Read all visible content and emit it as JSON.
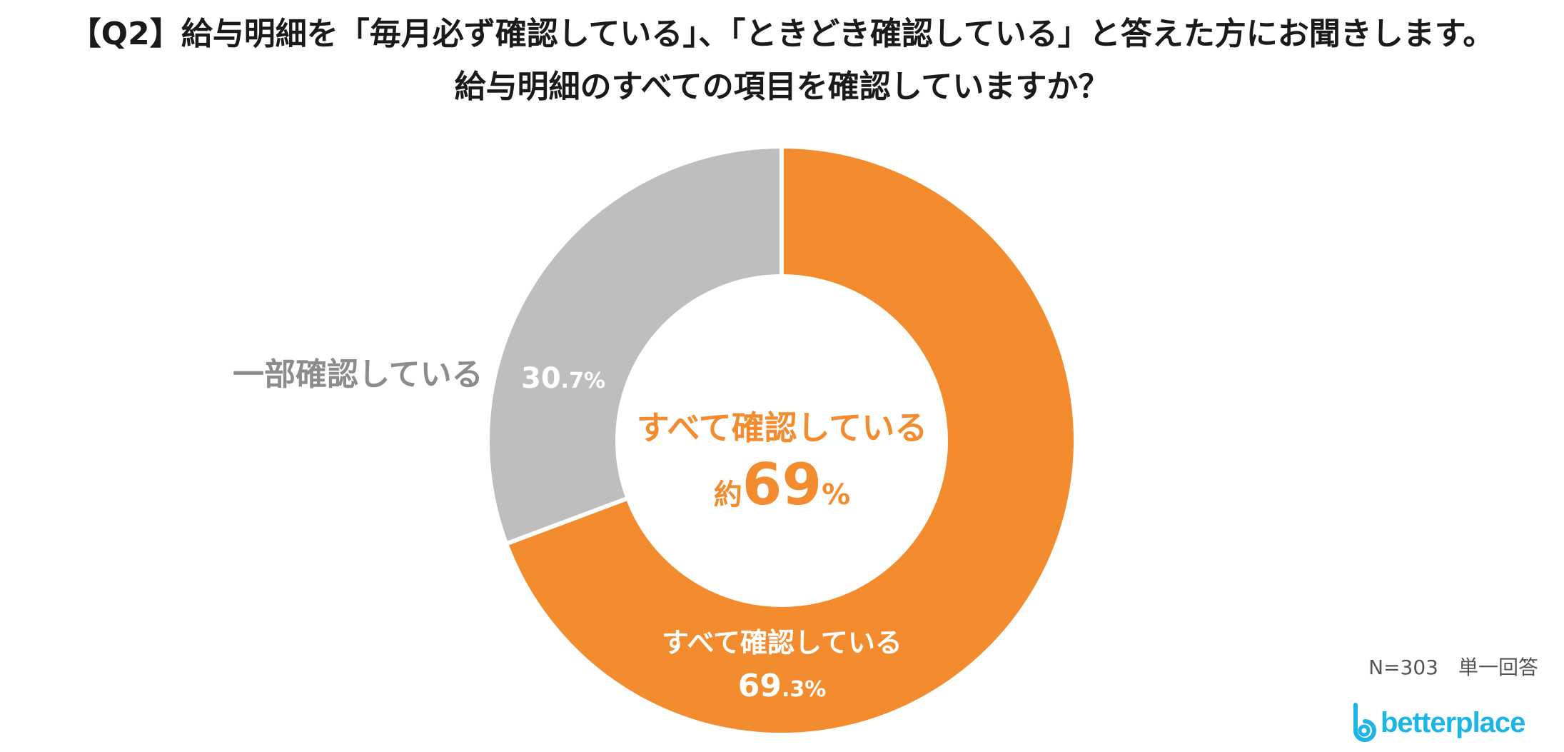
{
  "title": {
    "line1": "【Q2】給与明細を「毎月必ず確認している」、「ときどき確認している」と答えた方にお聞きします。",
    "line2": "給与明細のすべての項目を確認していますか？"
  },
  "colors": {
    "accent_orange": "#f28c2e",
    "slice_gray": "#bebebe",
    "gray_label": "#8c8c8c",
    "logo_blue": "#1db5e5"
  },
  "center": {
    "label": "すべて確認している",
    "prefix": "約",
    "value": "69",
    "unit": "%"
  },
  "slice_labels": {
    "all": {
      "name": "すべて確認している",
      "value_int": "69",
      "value_dec": ".3%"
    },
    "partial": {
      "value_int": "30",
      "value_dec": ".7%"
    }
  },
  "outside_label": "一部確認している",
  "footnote": "N=303　単一回答",
  "logo": {
    "text": "betterplace"
  },
  "chart_data": {
    "type": "pie",
    "donut": true,
    "title": "【Q2】給与明細を「毎月必ず確認している」、「ときどき確認している」と答えた方にお聞きします。給与明細のすべての項目を確認していますか？",
    "categories": [
      "すべて確認している",
      "一部確認している"
    ],
    "values": [
      69.3,
      30.7
    ],
    "unit": "%",
    "colors": [
      "#f28c2e",
      "#bebebe"
    ],
    "n": 303
  }
}
